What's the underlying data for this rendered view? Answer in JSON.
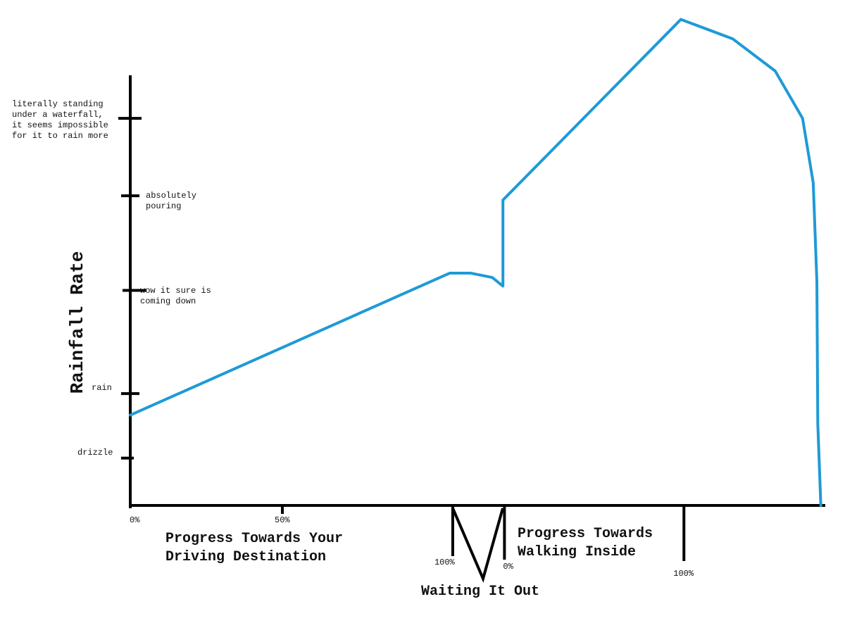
{
  "chart_data": {
    "type": "line",
    "y_label": "Rainfall Rate",
    "x_labels": [
      {
        "lines": [
          "Progress Towards Your",
          "Driving Destination"
        ]
      },
      {
        "lines": [
          "Waiting It Out"
        ]
      },
      {
        "lines": [
          "Progress Towards",
          "Walking Inside"
        ]
      }
    ],
    "xlim": [
      0,
      228
    ],
    "ylim": [
      0,
      100
    ],
    "xticks": [
      {
        "value": 0,
        "label": "0%"
      },
      {
        "value": 50,
        "label": "50%"
      },
      {
        "value": 106,
        "label": "100%"
      },
      {
        "value": 123,
        "label": "0%"
      },
      {
        "value": 182,
        "label": "100%"
      }
    ],
    "yticks": [
      {
        "value": 11,
        "label": "drizzle"
      },
      {
        "value": 26,
        "label": "rain"
      },
      {
        "value": 50,
        "label": "wow it sure is\ncoming down"
      },
      {
        "value": 72,
        "label": "absolutely\npouring"
      },
      {
        "value": 90,
        "label": "literally standing\nunder a waterfall,\nit seems impossible\nfor it to rain more"
      }
    ],
    "x": [
      0,
      105,
      112,
      119,
      122.5,
      122.5,
      181,
      198,
      212,
      221,
      224.5,
      225.7,
      226,
      227
    ],
    "values": [
      21,
      54,
      54,
      53,
      51,
      71,
      113,
      108.5,
      101,
      90,
      75,
      52,
      19,
      0
    ],
    "color": "#1e9ad6"
  }
}
